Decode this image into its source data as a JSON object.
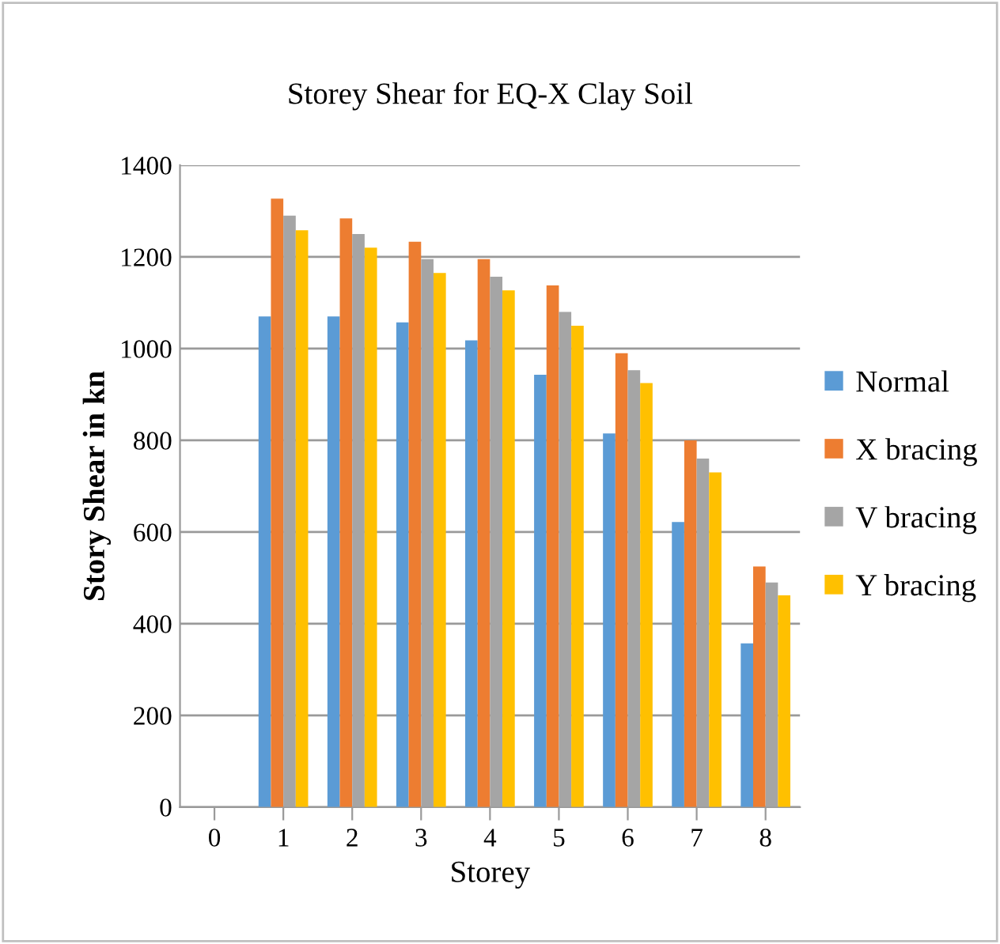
{
  "chart_data": {
    "type": "bar",
    "title": "Storey Shear for EQ-X Clay Soil",
    "xlabel": "Storey",
    "ylabel": "Story Shear in kn",
    "categories": [
      "0",
      "1",
      "2",
      "3",
      "4",
      "5",
      "6",
      "7",
      "8"
    ],
    "series": [
      {
        "name": "Normal",
        "color": "#5b9bd5",
        "values": [
          null,
          1070,
          1070,
          1057,
          1018,
          943,
          815,
          622,
          357
        ]
      },
      {
        "name": "X bracing",
        "color": "#ed7d31",
        "values": [
          null,
          1327,
          1284,
          1233,
          1195,
          1138,
          990,
          800,
          525
        ]
      },
      {
        "name": "V bracing",
        "color": "#a5a5a5",
        "values": [
          null,
          1290,
          1250,
          1195,
          1157,
          1080,
          953,
          760,
          490
        ]
      },
      {
        "name": "Y bracing",
        "color": "#ffc000",
        "values": [
          null,
          1258,
          1220,
          1165,
          1127,
          1050,
          925,
          730,
          462
        ]
      }
    ],
    "ylim": [
      0,
      1400
    ],
    "yticks": [
      0,
      200,
      400,
      600,
      800,
      1000,
      1200,
      1400
    ],
    "grid": "y",
    "legend": "right"
  }
}
